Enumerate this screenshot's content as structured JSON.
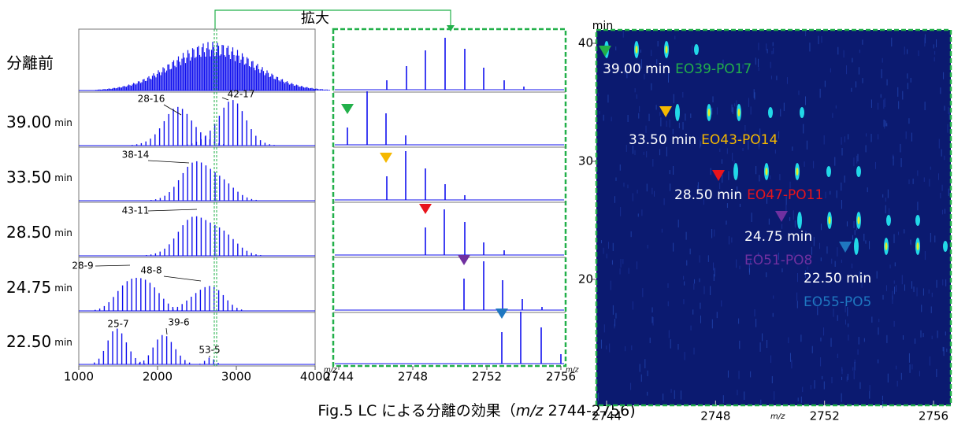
{
  "header": {
    "zoom_label": "拡大"
  },
  "left_panel": {
    "rows": [
      {
        "label": "分離前",
        "peaks": []
      },
      {
        "label": "39.00",
        "unit": "min",
        "peaks": [
          "28-16",
          "42-17"
        ]
      },
      {
        "label": "33.50",
        "unit": "min",
        "peaks": [
          "38-14"
        ]
      },
      {
        "label": "28.50",
        "unit": "min",
        "peaks": [
          "43-11"
        ]
      },
      {
        "label": "24.75",
        "unit": "min",
        "peaks": [
          "28-9",
          "48-8"
        ]
      },
      {
        "label": "22.50",
        "unit": "min",
        "peaks": [
          "25-7",
          "39-6",
          "53-5"
        ]
      }
    ],
    "xticks": [
      1000,
      2000,
      3000,
      4000
    ]
  },
  "middle_panel": {
    "xticks": [
      2744,
      2748,
      2752,
      2756
    ],
    "x_unit": "m/z"
  },
  "right_panel": {
    "y_label": "min",
    "yticks": [
      20,
      30,
      40
    ],
    "xticks": [
      2744,
      2748,
      2752,
      2756
    ],
    "x_label": "m/z",
    "annotations": [
      {
        "time": "39.00 min",
        "compound": "EO39-PO17"
      },
      {
        "time": "33.50 min",
        "compound": "EO43-PO14"
      },
      {
        "time": "28.50 min",
        "compound": "EO47-PO11"
      },
      {
        "time": "24.75 min",
        "compound": "EO51-PO8"
      },
      {
        "time": "22.50 min",
        "compound": "EO55-PO5"
      }
    ]
  },
  "caption": {
    "prefix": "Fig.5 LC による分離の効果（",
    "mz": "m/z",
    "range": " 2744-2756)"
  }
}
